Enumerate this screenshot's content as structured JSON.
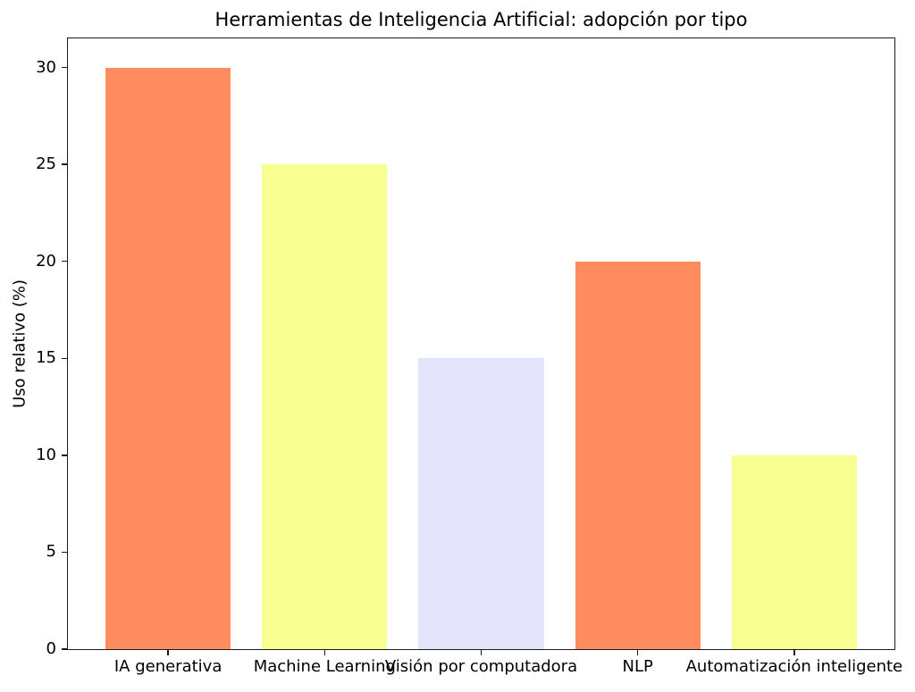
{
  "chart_data": {
    "type": "bar",
    "title": "Herramientas de Inteligencia Artificial: adopción por tipo",
    "xlabel": "",
    "ylabel": "Uso relativo (%)",
    "categories": [
      "IA generativa",
      "Machine Learning",
      "Visión por computadora",
      "NLP",
      "Automatización inteligente"
    ],
    "values": [
      30,
      25,
      15,
      20,
      10
    ],
    "bar_colors": [
      "#ff8c5e",
      "#f6ff8f",
      "#e4e4fc",
      "#ff8c5e",
      "#f6ff8f"
    ],
    "yticks": [
      0,
      5,
      10,
      15,
      20,
      25,
      30
    ],
    "ylim": [
      0,
      31.5
    ],
    "grid": false,
    "legend": "none",
    "spine_color": "#1c1c1c"
  }
}
